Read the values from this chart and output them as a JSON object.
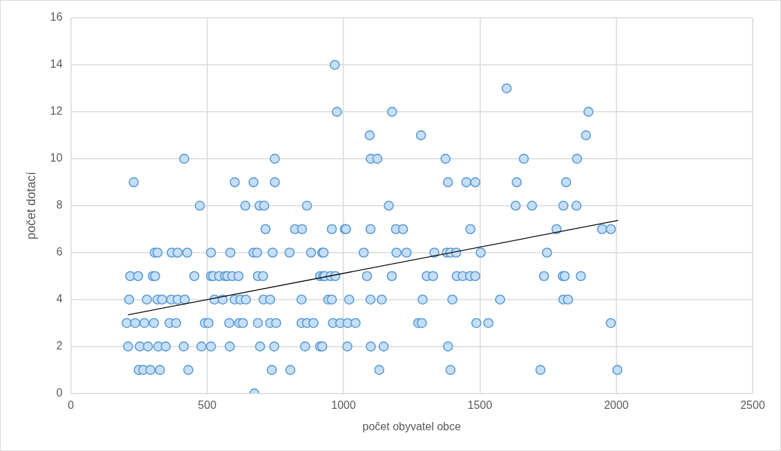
{
  "chart_data": {
    "type": "scatter",
    "xlabel": "počet obyvatel obce",
    "ylabel": "počet dotací",
    "xlim": [
      0,
      2500
    ],
    "xticks": [
      0,
      500,
      1000,
      1500,
      2000,
      2500
    ],
    "ylim": [
      0,
      16
    ],
    "yticks": [
      0,
      2,
      4,
      6,
      8,
      10,
      12,
      14,
      16
    ],
    "grid": true,
    "legend": false,
    "marker": "circle",
    "series": [
      {
        "type": "scatter",
        "color": "#5b9bd5",
        "x": [
          968,
          1598,
          976,
          1178,
          1096,
          1284,
          416,
          748,
          1100,
          1124,
          1374,
          1661,
          1856,
          1898,
          1889,
          231,
          601,
          670,
          748,
          1383,
          1450,
          1483,
          1635,
          1816,
          473,
          640,
          692,
          709,
          866,
          1166,
          1631,
          1691,
          1806,
          1854,
          714,
          822,
          848,
          957,
          1005,
          1009,
          1099,
          1192,
          1218,
          1465,
          1781,
          1948,
          1980,
          308,
          318,
          370,
          392,
          427,
          514,
          585,
          670,
          683,
          740,
          802,
          881,
          922,
          927,
          1074,
          1194,
          1231,
          1333,
          1379,
          1392,
          1413,
          1503,
          1746,
          218,
          247,
          301,
          309,
          453,
          514,
          522,
          544,
          566,
          574,
          592,
          615,
          686,
          705,
          914,
          926,
          931,
          953,
          970,
          1086,
          1177,
          1305,
          1328,
          1415,
          1437,
          1464,
          1483,
          1735,
          1804,
          1811,
          1870,
          214,
          279,
          318,
          335,
          368,
          392,
          418,
          527,
          557,
          601,
          622,
          642,
          707,
          731,
          846,
          944,
          957,
          1021,
          1099,
          1140,
          1290,
          1399,
          1574,
          1806,
          1823,
          205,
          236,
          270,
          305,
          362,
          386,
          492,
          505,
          581,
          618,
          631,
          686,
          731,
          753,
          846,
          866,
          890,
          961,
          988,
          1015,
          1044,
          1274,
          1287,
          1487,
          1531,
          1980,
          210,
          253,
          283,
          321,
          348,
          414,
          479,
          514,
          583,
          694,
          746,
          859,
          914,
          922,
          1014,
          1100,
          1147,
          1383,
          249,
          266,
          292,
          327,
          431,
          737,
          805,
          1131,
          1392,
          1722,
          2004,
          673
        ],
        "values": [
          14,
          13,
          12,
          12,
          11,
          11,
          10,
          10,
          10,
          10,
          10,
          10,
          10,
          12,
          11,
          9,
          9,
          9,
          9,
          9,
          9,
          9,
          9,
          9,
          8,
          8,
          8,
          8,
          8,
          8,
          8,
          8,
          8,
          8,
          7,
          7,
          7,
          7,
          7,
          7,
          7,
          7,
          7,
          7,
          7,
          7,
          7,
          6,
          6,
          6,
          6,
          6,
          6,
          6,
          6,
          6,
          6,
          6,
          6,
          6,
          6,
          6,
          6,
          6,
          6,
          6,
          6,
          6,
          6,
          6,
          5,
          5,
          5,
          5,
          5,
          5,
          5,
          5,
          5,
          5,
          5,
          5,
          5,
          5,
          5,
          5,
          5,
          5,
          5,
          5,
          5,
          5,
          5,
          5,
          5,
          5,
          5,
          5,
          5,
          5,
          5,
          4,
          4,
          4,
          4,
          4,
          4,
          4,
          4,
          4,
          4,
          4,
          4,
          4,
          4,
          4,
          4,
          4,
          4,
          4,
          4,
          4,
          4,
          4,
          4,
          4,
          3,
          3,
          3,
          3,
          3,
          3,
          3,
          3,
          3,
          3,
          3,
          3,
          3,
          3,
          3,
          3,
          3,
          3,
          3,
          3,
          3,
          3,
          3,
          3,
          3,
          3,
          2,
          2,
          2,
          2,
          2,
          2,
          2,
          2,
          2,
          2,
          2,
          2,
          2,
          2,
          2,
          2,
          2,
          2,
          1,
          1,
          1,
          1,
          1,
          1,
          1,
          1,
          1,
          1,
          1,
          0
        ]
      },
      {
        "type": "line",
        "color": "#000000",
        "marker": "none",
        "x": [
          210,
          2007
        ],
        "values": [
          3.35,
          7.37
        ]
      }
    ]
  }
}
